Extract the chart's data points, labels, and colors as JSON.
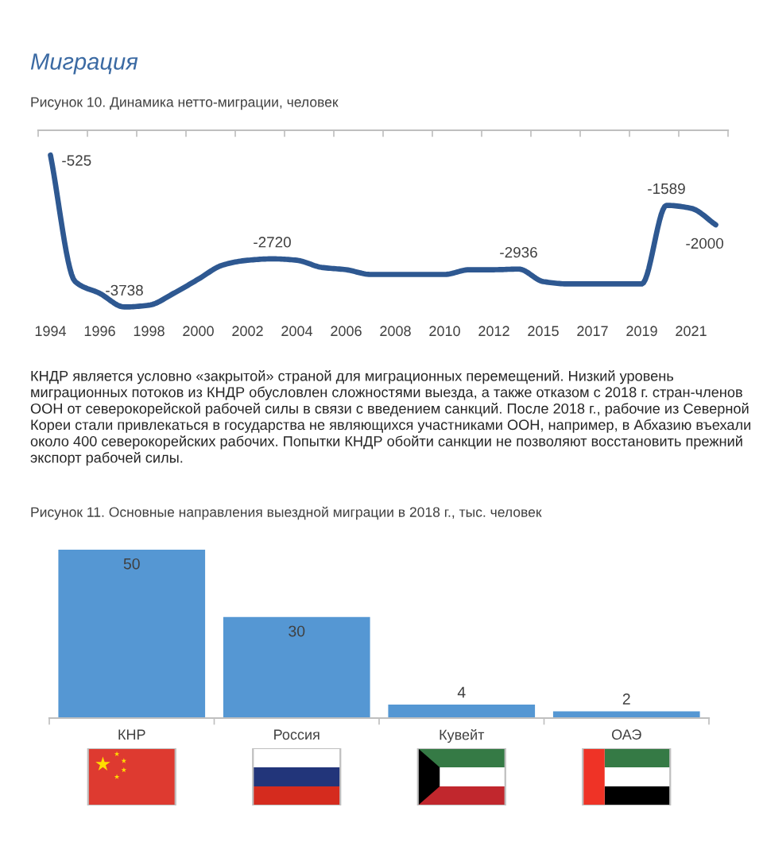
{
  "chart_data": [
    {
      "type": "line",
      "title": "Миграция",
      "subtitle": "Рисунок 10. Динамика нетто-миграции, человек",
      "categories": [
        "1994",
        null,
        "1996",
        null,
        "1998",
        null,
        "2000",
        null,
        "2002",
        null,
        "2004",
        null,
        "2006",
        null,
        "2008",
        null,
        "2010",
        null,
        "2012",
        null,
        "2015",
        null,
        "2017",
        null,
        "2019",
        null,
        "2021",
        null
      ],
      "values": [
        -525,
        -3200,
        -3450,
        -3738,
        -3700,
        -3450,
        -3150,
        -2850,
        -2750,
        -2720,
        -2750,
        -2900,
        -2950,
        -3050,
        -3050,
        -3050,
        -3050,
        -2950,
        -2950,
        -2936,
        -3200,
        -3250,
        -3250,
        -3250,
        -3250,
        -1589,
        -1650,
        -2000
      ],
      "value_labels": [
        "-525",
        null,
        null,
        "-3738",
        null,
        null,
        null,
        null,
        null,
        "-2720",
        null,
        null,
        null,
        null,
        null,
        null,
        null,
        null,
        null,
        "-2936",
        null,
        null,
        null,
        null,
        null,
        "-1589",
        null,
        "-2000"
      ],
      "color": "#2e5891",
      "tick_labels": "x",
      "annotations": [
        "КНДР является условно «закрытой» страной для миграционных перемещений. Низкий уровень миграционных потоков из КНДР обусловлен сложностями выезда, а также отказом с 2018 г. стран-членов ООН от северокорейской рабочей силы в связи с введением санкций. После 2018 г., рабочие из Северной Кореи стали привлекаться в государства не являющихся участниками ООН, например, в Абхазию въехали около 400 северокорейских рабочих. Попытки КНДР обойти санкции не позволяют восстановить прежний экспорт рабочей силы."
      ]
    },
    {
      "type": "bar",
      "title": "Рисунок 11. Основные направления выездной миграции в 2018 г., тыс. человек",
      "categories": [
        "КНР",
        "Россия",
        "Кувейт",
        "ОАЭ"
      ],
      "values": [
        50,
        30,
        4,
        2
      ],
      "color": "#5597d3",
      "data_labels": true,
      "ylim": [
        0,
        50
      ],
      "tick_labels": "x"
    }
  ]
}
